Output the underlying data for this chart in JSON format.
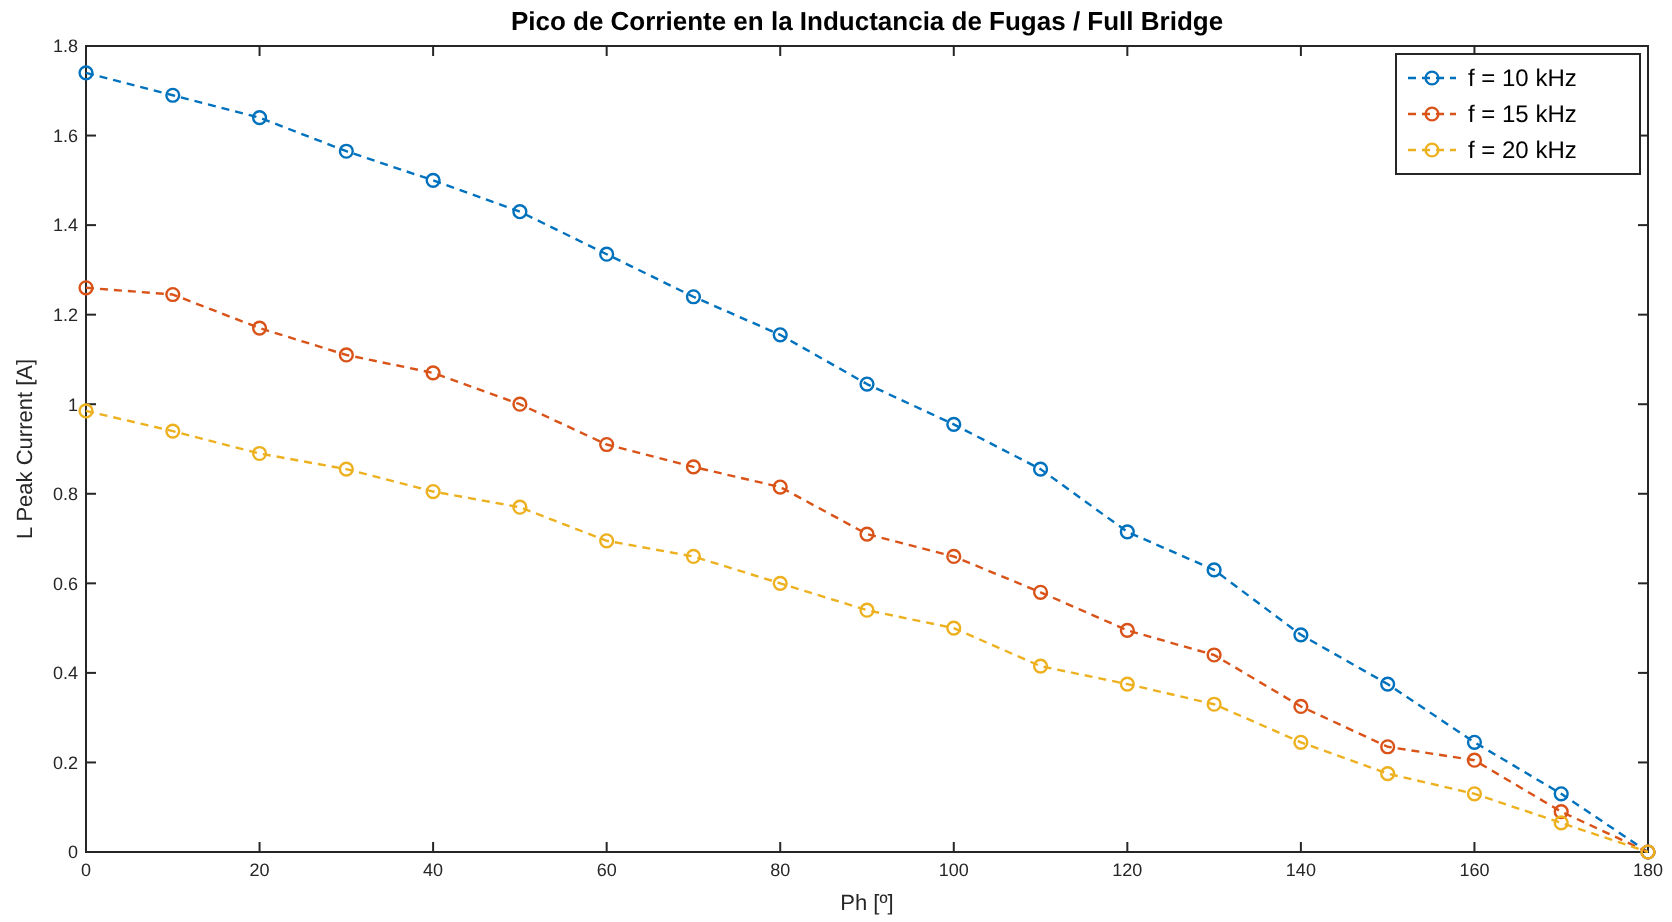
{
  "chart_data": {
    "type": "line",
    "title": "Pico de Corriente en la Inductancia de Fugas / Full Bridge",
    "xlabel": "Ph [º]",
    "ylabel": "L Peak Current [A]",
    "x": [
      0,
      10,
      20,
      30,
      40,
      50,
      60,
      70,
      80,
      90,
      100,
      110,
      120,
      130,
      140,
      150,
      160,
      170,
      180
    ],
    "series": [
      {
        "name": "f = 10 kHz",
        "color": "#0072bd",
        "values": [
          1.74,
          1.69,
          1.64,
          1.565,
          1.5,
          1.43,
          1.335,
          1.24,
          1.155,
          1.045,
          0.955,
          0.855,
          0.715,
          0.63,
          0.485,
          0.375,
          0.245,
          0.13,
          0
        ]
      },
      {
        "name": "f = 15 kHz",
        "color": "#d95319",
        "values": [
          1.26,
          1.245,
          1.17,
          1.11,
          1.07,
          1.0,
          0.91,
          0.86,
          0.815,
          0.71,
          0.66,
          0.58,
          0.495,
          0.44,
          0.325,
          0.235,
          0.205,
          0.09,
          0
        ]
      },
      {
        "name": "f = 20 kHz",
        "color": "#edb120",
        "values": [
          0.985,
          0.94,
          0.89,
          0.855,
          0.805,
          0.77,
          0.695,
          0.66,
          0.6,
          0.54,
          0.5,
          0.415,
          0.375,
          0.33,
          0.245,
          0.175,
          0.13,
          0.065,
          0
        ]
      }
    ],
    "xlim": [
      0,
      180
    ],
    "xticks": [
      0,
      20,
      40,
      60,
      80,
      100,
      120,
      140,
      160,
      180
    ],
    "ylim": [
      0,
      1.8
    ],
    "yticks": [
      0,
      0.2,
      0.4,
      0.6,
      0.8,
      1,
      1.2,
      1.4,
      1.6,
      1.8
    ],
    "grid": false,
    "legend": "top right",
    "marker": "circle",
    "line_style": "dashed"
  }
}
